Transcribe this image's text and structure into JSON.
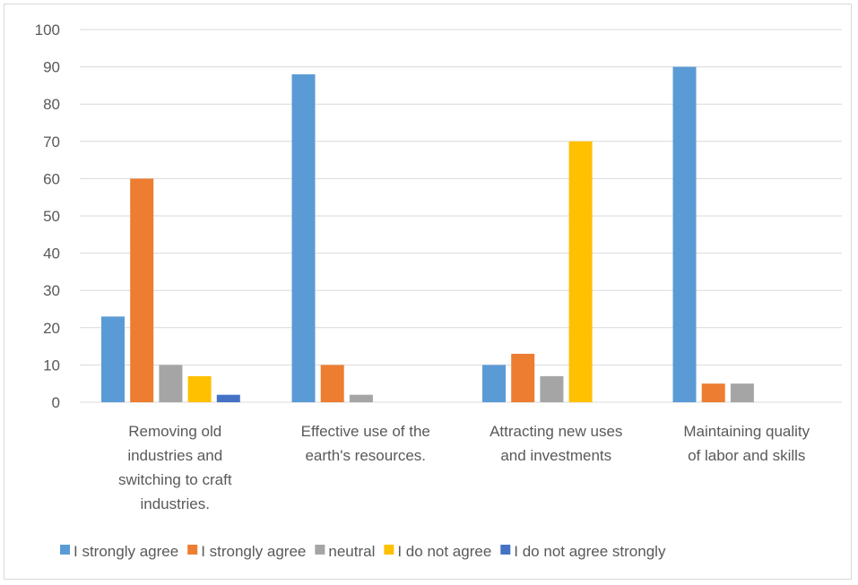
{
  "chart_data": {
    "type": "bar",
    "title": "",
    "xlabel": "",
    "ylabel": "",
    "ylim": [
      0,
      100
    ],
    "yticks": [
      0,
      10,
      20,
      30,
      40,
      50,
      60,
      70,
      80,
      90,
      100
    ],
    "grid": true,
    "legend_position": "bottom",
    "categories": [
      [
        "Removing old",
        "industries and",
        "switching to craft",
        "industries."
      ],
      [
        "Effective use of the",
        "earth's resources."
      ],
      [
        "Attracting new uses",
        "and investments"
      ],
      [
        "Maintaining quality",
        "of labor and skills"
      ]
    ],
    "series": [
      {
        "name": "I strongly agree",
        "color": "#5b9bd5",
        "values": [
          23,
          88,
          10,
          90
        ]
      },
      {
        "name": "I strongly agree",
        "color": "#ed7d31",
        "values": [
          60,
          10,
          13,
          5
        ]
      },
      {
        "name": "neutral",
        "color": "#a5a5a5",
        "values": [
          10,
          2,
          7,
          5
        ]
      },
      {
        "name": "I do not agree",
        "color": "#ffc000",
        "values": [
          7,
          0,
          70,
          0
        ]
      },
      {
        "name": "I do not agree strongly",
        "color": "#4472c4",
        "values": [
          2,
          0,
          0,
          0
        ]
      }
    ]
  }
}
